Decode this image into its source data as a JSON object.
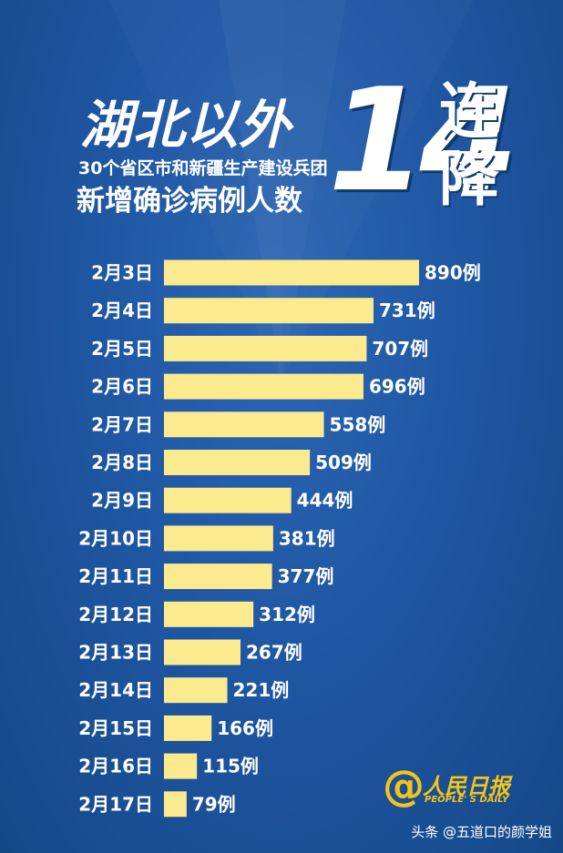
{
  "header": {
    "title_main": "湖北以外",
    "title_sub": "30个省区市和新疆生产建设兵团",
    "title_line3": "新增确诊病例人数",
    "big_number": "14",
    "big_char_1": "连",
    "big_char_2": "降"
  },
  "chart_data": {
    "type": "bar",
    "orientation": "horizontal",
    "categories": [
      "2月3日",
      "2月4日",
      "2月5日",
      "2月6日",
      "2月7日",
      "2月8日",
      "2月9日",
      "2月10日",
      "2月11日",
      "2月12日",
      "2月13日",
      "2月14日",
      "2月15日",
      "2月16日",
      "2月17日"
    ],
    "values": [
      890,
      731,
      707,
      696,
      558,
      509,
      444,
      381,
      377,
      312,
      267,
      221,
      166,
      115,
      79
    ],
    "value_labels": [
      "890例",
      "731例",
      "707例",
      "696例",
      "558例",
      "509例",
      "444例",
      "381例",
      "377例",
      "312例",
      "267例",
      "221例",
      "166例",
      "115例",
      "79例"
    ],
    "bar_color": "#fcea8f",
    "title": "",
    "xlabel": "",
    "ylabel": ""
  },
  "logo": {
    "at_symbol": "@",
    "name": "人民日报",
    "english": "PEOPLE' S DAILY"
  },
  "watermark": "头条 @五道口的颜学姐"
}
